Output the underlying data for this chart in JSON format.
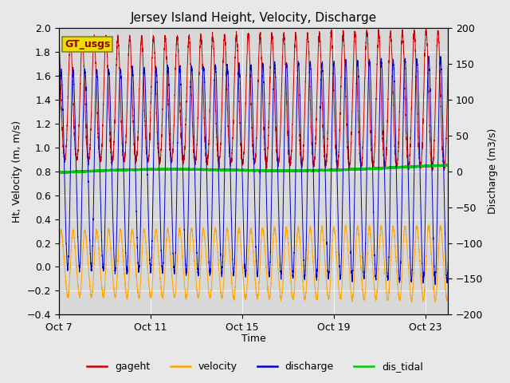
{
  "title": "Jersey Island Height, Velocity, Discharge",
  "xlabel": "Time",
  "ylabel_left": "Ht, Velocity (m, m/s)",
  "ylabel_right": "Discharge (m3/s)",
  "ylim_left": [
    -0.4,
    2.0
  ],
  "ylim_right": [
    -200,
    200
  ],
  "x_ticks_labels": [
    "Oct 7",
    "Oct 11",
    "Oct 15",
    "Oct 19",
    "Oct 23"
  ],
  "x_ticks_pos": [
    0,
    4,
    8,
    12,
    16
  ],
  "fig_bg_color": "#e8e8e8",
  "plot_bg_color": "#d8d8d8",
  "legend_labels": [
    "gageht",
    "velocity",
    "discharge",
    "dis_tidal"
  ],
  "legend_colors": [
    "#cc0000",
    "#ffa500",
    "#0000cc",
    "#00cc00"
  ],
  "gt_usgs_box_facecolor": "#e8e000",
  "gt_usgs_box_edgecolor": "#888800",
  "gt_usgs_text": "GT_usgs",
  "gageht_color": "#cc0000",
  "velocity_color": "#ffa500",
  "discharge_color": "#0000cc",
  "dis_tidal_color": "#00cc00",
  "tidal_period_hours": 12.42,
  "num_days": 17,
  "gageht_min": 0.78,
  "gageht_max": 1.92,
  "velocity_min": -0.28,
  "velocity_max": 0.33,
  "discharge_min": -155,
  "discharge_max": 155,
  "dis_tidal_start": 0.79,
  "dis_tidal_end": 0.84
}
